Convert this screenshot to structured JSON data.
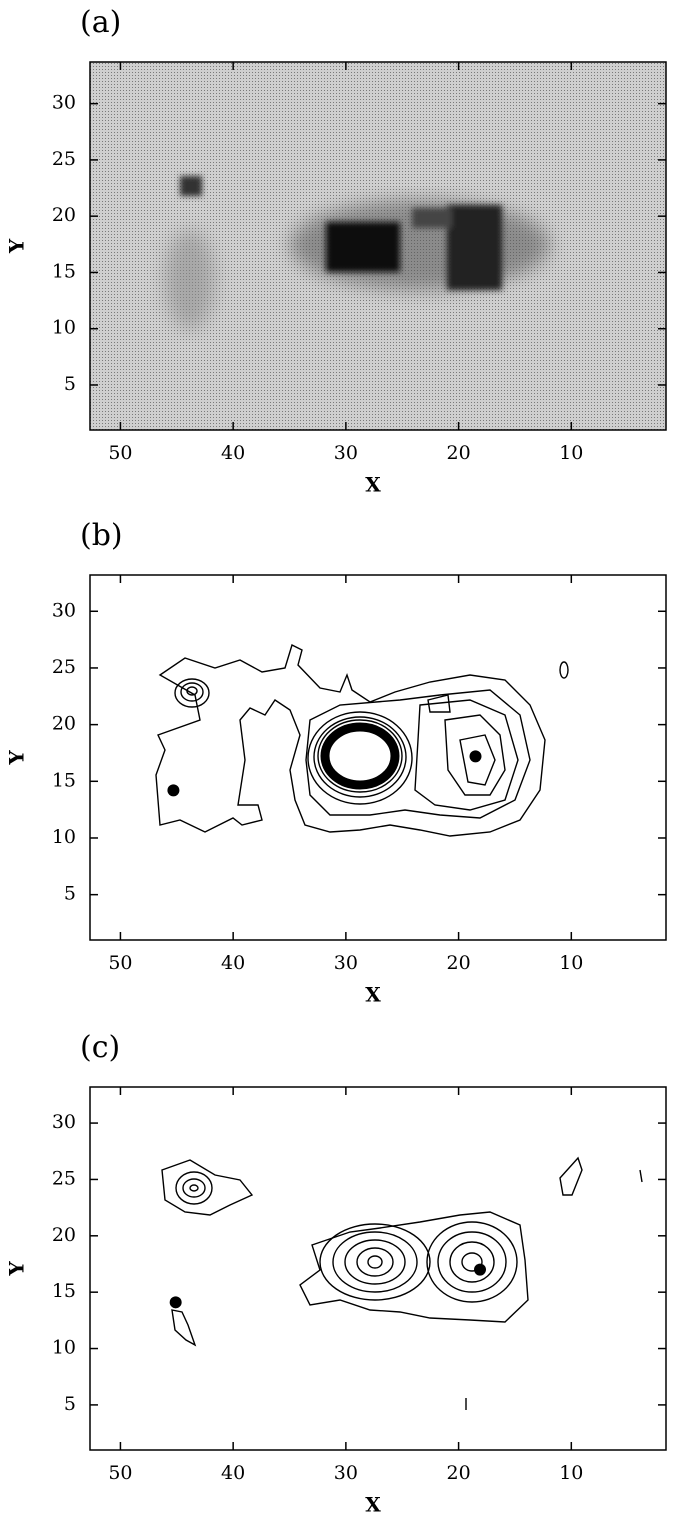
{
  "chart_data": [
    {
      "type": "image",
      "panel_label": "(a)",
      "xlabel": "X",
      "ylabel": "Y",
      "xlim": [
        52.7,
        1.6
      ],
      "ylim": [
        1,
        33.7
      ],
      "xticks": [
        50,
        40,
        30,
        20,
        10
      ],
      "yticks": [
        5,
        10,
        15,
        20,
        25,
        30
      ]
    },
    {
      "type": "contour",
      "panel_label": "(b)",
      "xlabel": "X",
      "ylabel": "Y",
      "xlim": [
        52.7,
        1.6
      ],
      "ylim": [
        1,
        33.2
      ],
      "xticks": [
        50,
        40,
        30,
        20,
        10
      ],
      "yticks": [
        5,
        10,
        15,
        20,
        25,
        30
      ],
      "x": [
        45.3,
        18.5
      ],
      "y": [
        14.2,
        17.2
      ],
      "color": "#000000"
    },
    {
      "type": "contour",
      "panel_label": "(c)",
      "xlabel": "X",
      "ylabel": "Y",
      "xlim": [
        52.7,
        1.6
      ],
      "ylim": [
        1,
        33.2
      ],
      "xticks": [
        50,
        40,
        30,
        20,
        10
      ],
      "yticks": [
        5,
        10,
        15,
        20,
        25,
        30
      ],
      "x": [
        45.1,
        18.1
      ],
      "y": [
        14.1,
        17.0
      ],
      "color": "#000000"
    }
  ]
}
